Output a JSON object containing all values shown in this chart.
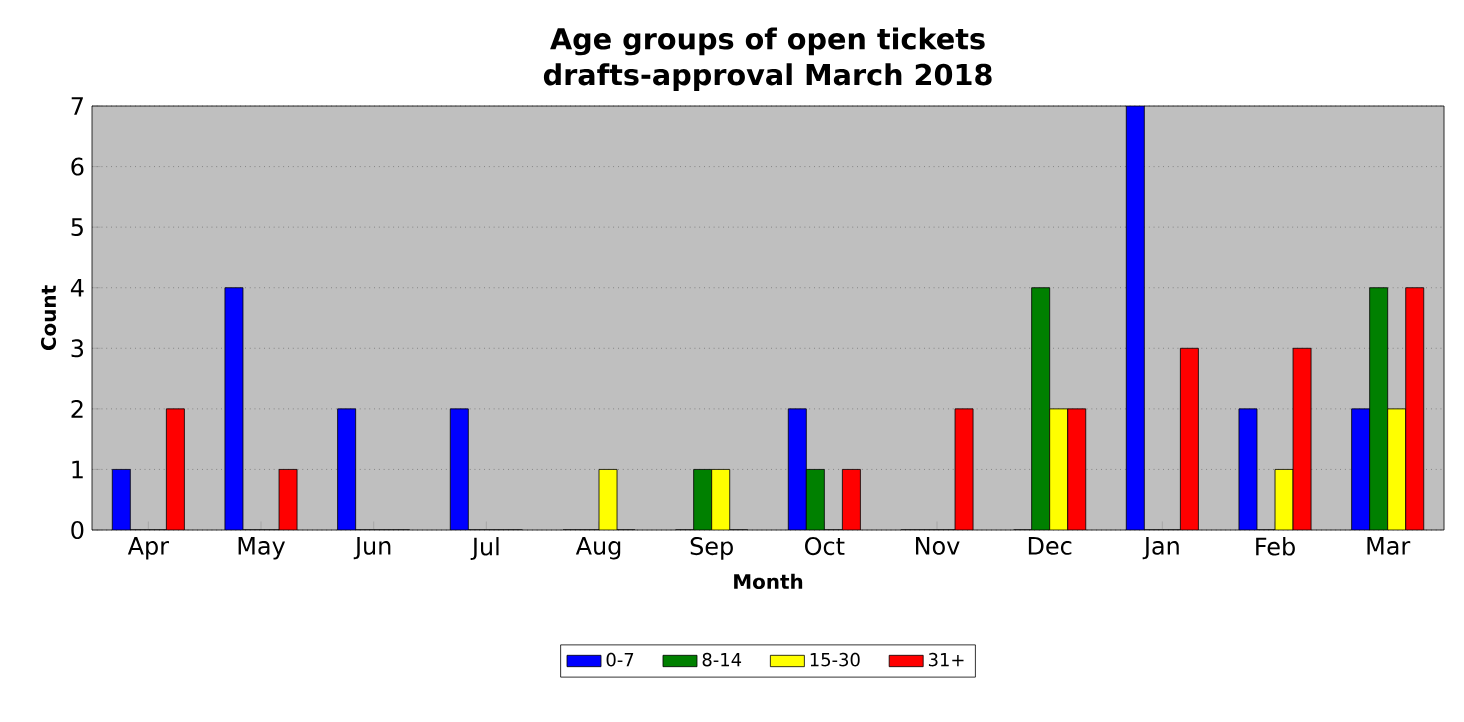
{
  "chart_data": {
    "type": "bar",
    "title": "Age groups of open tickets\ndrafts-approval March 2018",
    "xlabel": "Month",
    "ylabel": "Count",
    "categories": [
      "Apr",
      "May",
      "Jun",
      "Jul",
      "Aug",
      "Sep",
      "Oct",
      "Nov",
      "Dec",
      "Jan",
      "Feb",
      "Mar"
    ],
    "series": [
      {
        "name": "0-7",
        "color": "#0000ff",
        "values": [
          1,
          4,
          2,
          2,
          0,
          0,
          2,
          0,
          0,
          7,
          2,
          2
        ]
      },
      {
        "name": "8-14",
        "color": "#008000",
        "values": [
          0,
          0,
          0,
          0,
          0,
          1,
          1,
          0,
          4,
          0,
          0,
          4
        ]
      },
      {
        "name": "15-30",
        "color": "#ffff00",
        "values": [
          0,
          0,
          0,
          0,
          1,
          1,
          0,
          0,
          2,
          0,
          1,
          2
        ]
      },
      {
        "name": "31+",
        "color": "#ff0000",
        "values": [
          2,
          1,
          0,
          0,
          0,
          0,
          1,
          2,
          2,
          3,
          3,
          4
        ]
      }
    ],
    "ylim": [
      0,
      7
    ],
    "yticks": [
      0,
      1,
      2,
      3,
      4,
      5,
      6,
      7
    ],
    "grid": "y",
    "legend": "bottom"
  }
}
